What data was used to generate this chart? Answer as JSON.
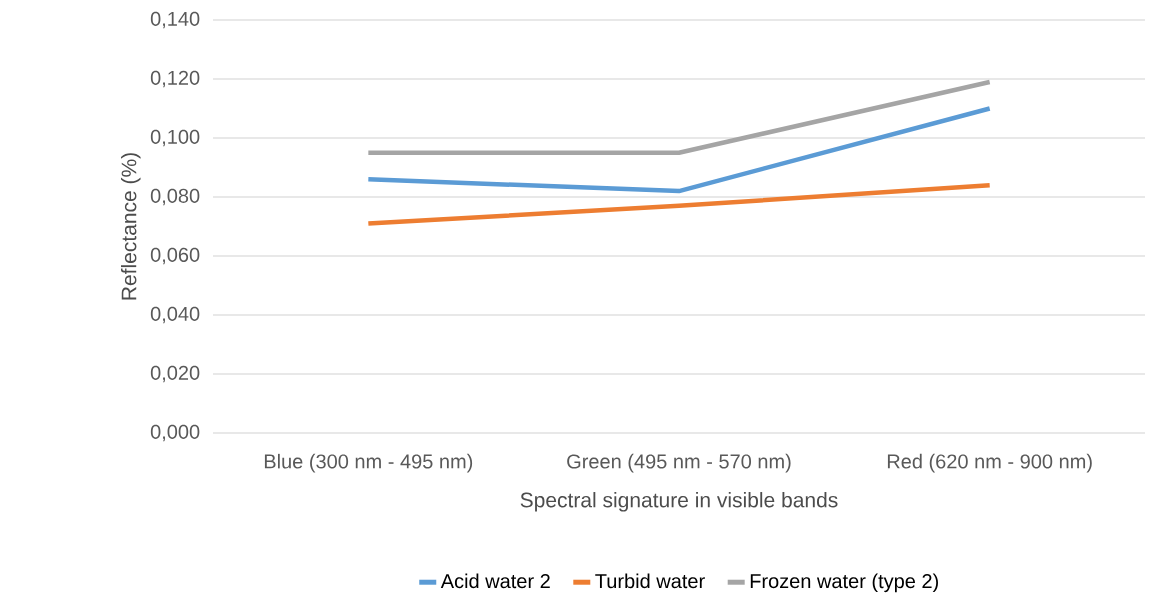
{
  "chart_data": {
    "type": "line",
    "xlabel": "Spectral signature in visible bands",
    "ylabel": "Reflectance (%)",
    "categories": [
      "Blue (300 nm - 495 nm)",
      "Green (495 nm - 570 nm)",
      "Red (620 nm - 900 nm)"
    ],
    "series": [
      {
        "name": "Acid water 2",
        "color": "#5b9bd5",
        "values": [
          0.086,
          0.082,
          0.11
        ]
      },
      {
        "name": "Turbid water",
        "color": "#ed7d31",
        "values": [
          0.071,
          0.077,
          0.084
        ]
      },
      {
        "name": "Frozen water (type 2)",
        "color": "#a5a5a5",
        "values": [
          0.095,
          0.095,
          0.119
        ]
      }
    ],
    "ylim": [
      0,
      0.14
    ],
    "yticks": [
      {
        "value": 0,
        "label": "0,000"
      },
      {
        "value": 0.02,
        "label": "0,020"
      },
      {
        "value": 0.04,
        "label": "0,040"
      },
      {
        "value": 0.06,
        "label": "0,060"
      },
      {
        "value": 0.08,
        "label": "0,080"
      },
      {
        "value": 0.1,
        "label": "0,100"
      },
      {
        "value": 0.12,
        "label": "0,120"
      },
      {
        "value": 0.14,
        "label": "0,140"
      }
    ],
    "grid": "y",
    "legend": "bottom",
    "marker": "none",
    "line_style": "solid"
  }
}
